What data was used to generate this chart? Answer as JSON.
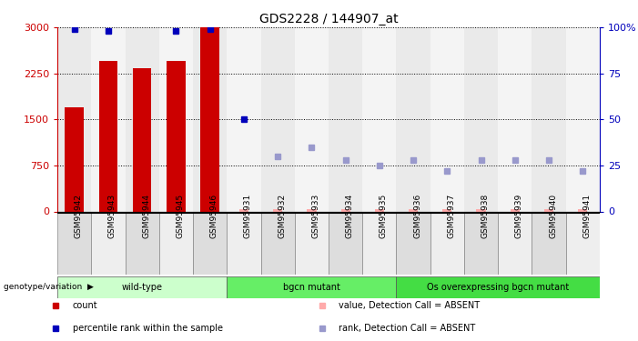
{
  "title": "GDS2228 / 144907_at",
  "samples": [
    "GSM95942",
    "GSM95943",
    "GSM95944",
    "GSM95945",
    "GSM95946",
    "GSM95931",
    "GSM95932",
    "GSM95933",
    "GSM95934",
    "GSM95935",
    "GSM95936",
    "GSM95937",
    "GSM95938",
    "GSM95939",
    "GSM95940",
    "GSM95941"
  ],
  "count_values": [
    1700,
    2450,
    2330,
    2450,
    3000,
    null,
    null,
    null,
    null,
    null,
    null,
    null,
    null,
    null,
    null,
    null
  ],
  "count_absent": [
    null,
    null,
    null,
    null,
    null,
    30,
    30,
    30,
    30,
    30,
    30,
    30,
    30,
    30,
    30,
    30
  ],
  "percentile_present": [
    99,
    98,
    null,
    98,
    99,
    50,
    null,
    null,
    null,
    null,
    null,
    null,
    null,
    null,
    null,
    null
  ],
  "percentile_absent": [
    null,
    null,
    null,
    null,
    null,
    null,
    30,
    35,
    28,
    25,
    28,
    22,
    28,
    28,
    28,
    22
  ],
  "groups": [
    {
      "label": "wild-type",
      "start": 0,
      "end": 4,
      "color": "#ccffcc"
    },
    {
      "label": "bgcn mutant",
      "start": 5,
      "end": 9,
      "color": "#66ee66"
    },
    {
      "label": "Os overexpressing bgcn mutant",
      "start": 10,
      "end": 15,
      "color": "#44dd44"
    }
  ],
  "ylim_left": [
    0,
    3000
  ],
  "ylim_right": [
    0,
    100
  ],
  "yticks_left": [
    0,
    750,
    1500,
    2250,
    3000
  ],
  "yticks_right": [
    0,
    25,
    50,
    75,
    100
  ],
  "bar_color": "#cc0000",
  "bar_absent_color": "#ffaaaa",
  "dot_present_color": "#0000bb",
  "dot_absent_color": "#9999cc",
  "legend_items": [
    {
      "label": "count",
      "color": "#cc0000",
      "marker": "s"
    },
    {
      "label": "percentile rank within the sample",
      "color": "#0000bb",
      "marker": "s"
    },
    {
      "label": "value, Detection Call = ABSENT",
      "color": "#ffaaaa",
      "marker": "s"
    },
    {
      "label": "rank, Detection Call = ABSENT",
      "color": "#9999cc",
      "marker": "s"
    }
  ],
  "genotype_label": "genotype/variation",
  "col_bg_even": "#dddddd",
  "col_bg_odd": "#eeeeee"
}
